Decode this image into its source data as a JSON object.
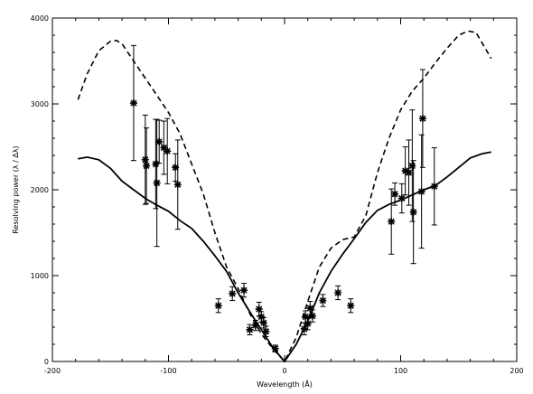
{
  "chart_data": {
    "type": "scatter",
    "xlabel": "Wavelength (Å)",
    "ylabel": "Resolving power (λ / Δλ)",
    "xlim": [
      -200,
      200
    ],
    "ylim": [
      0,
      4000
    ],
    "xticks": [
      -200,
      -100,
      0,
      100,
      200
    ],
    "yticks": [
      0,
      1000,
      2000,
      3000,
      4000
    ],
    "grid": false,
    "series": [
      {
        "style": "dashed",
        "x": [
          -178,
          -170,
          -160,
          -150,
          -145,
          -140,
          -130,
          -120,
          -110,
          -100,
          -90,
          -80,
          -70,
          -60,
          -50,
          -40,
          -30,
          -20,
          -10,
          0,
          10,
          20,
          30,
          40,
          50,
          60,
          70,
          80,
          90,
          100,
          110,
          120,
          130,
          140,
          150,
          158,
          165,
          178
        ],
        "y": [
          3050,
          3350,
          3620,
          3730,
          3740,
          3700,
          3500,
          3300,
          3100,
          2900,
          2650,
          2300,
          1950,
          1500,
          1100,
          850,
          560,
          320,
          150,
          0,
          280,
          700,
          1100,
          1320,
          1420,
          1450,
          1700,
          2200,
          2600,
          2930,
          3150,
          3300,
          3480,
          3650,
          3800,
          3850,
          3830,
          3530
        ]
      },
      {
        "style": "solid",
        "x": [
          -178,
          -170,
          -160,
          -150,
          -140,
          -130,
          -120,
          -110,
          -100,
          -90,
          -80,
          -70,
          -60,
          -50,
          -40,
          -30,
          -20,
          -10,
          0,
          10,
          20,
          30,
          40,
          50,
          60,
          70,
          80,
          90,
          100,
          110,
          120,
          130,
          140,
          150,
          160,
          170,
          178
        ],
        "y": [
          2360,
          2380,
          2350,
          2250,
          2100,
          2000,
          1900,
          1820,
          1750,
          1640,
          1550,
          1400,
          1230,
          1050,
          800,
          580,
          370,
          160,
          0,
          200,
          470,
          800,
          1050,
          1250,
          1430,
          1620,
          1760,
          1830,
          1880,
          1940,
          2000,
          2050,
          2150,
          2260,
          2370,
          2420,
          2440
        ]
      }
    ],
    "points": [
      {
        "x": -130,
        "y": 3010,
        "err": 670
      },
      {
        "x": -120,
        "y": 2350,
        "err": 520
      },
      {
        "x": -119,
        "y": 2280,
        "err": 440
      },
      {
        "x": -111,
        "y": 2300,
        "err": 520
      },
      {
        "x": -110,
        "y": 2080,
        "err": 740
      },
      {
        "x": -108,
        "y": 2560,
        "err": 250
      },
      {
        "x": -104,
        "y": 2490,
        "err": 310
      },
      {
        "x": -101,
        "y": 2450,
        "err": 380
      },
      {
        "x": -94,
        "y": 2260,
        "err": 160
      },
      {
        "x": -92,
        "y": 2060,
        "err": 520
      },
      {
        "x": -57,
        "y": 650,
        "err": 80
      },
      {
        "x": -45,
        "y": 790,
        "err": 80
      },
      {
        "x": -35,
        "y": 830,
        "err": 80
      },
      {
        "x": -30,
        "y": 370,
        "err": 60
      },
      {
        "x": -25,
        "y": 420,
        "err": 60
      },
      {
        "x": -22,
        "y": 610,
        "err": 80
      },
      {
        "x": -20,
        "y": 520,
        "err": 60
      },
      {
        "x": -18,
        "y": 450,
        "err": 60
      },
      {
        "x": -16,
        "y": 350,
        "err": 60
      },
      {
        "x": -8,
        "y": 150,
        "err": 40
      },
      {
        "x": 17,
        "y": 380,
        "err": 70
      },
      {
        "x": 18,
        "y": 520,
        "err": 70
      },
      {
        "x": 20,
        "y": 440,
        "err": 70
      },
      {
        "x": 22,
        "y": 620,
        "err": 80
      },
      {
        "x": 24,
        "y": 530,
        "err": 70
      },
      {
        "x": 33,
        "y": 710,
        "err": 70
      },
      {
        "x": 46,
        "y": 800,
        "err": 80
      },
      {
        "x": 57,
        "y": 650,
        "err": 80
      },
      {
        "x": 92,
        "y": 1630,
        "err": 380
      },
      {
        "x": 95,
        "y": 1950,
        "err": 130
      },
      {
        "x": 101,
        "y": 1900,
        "err": 170
      },
      {
        "x": 104,
        "y": 2220,
        "err": 280
      },
      {
        "x": 107,
        "y": 2200,
        "err": 380
      },
      {
        "x": 110,
        "y": 2280,
        "err": 650
      },
      {
        "x": 111,
        "y": 1740,
        "err": 600
      },
      {
        "x": 118,
        "y": 1980,
        "err": 660
      },
      {
        "x": 119,
        "y": 2830,
        "err": 570
      },
      {
        "x": 129,
        "y": 2040,
        "err": 450
      }
    ]
  }
}
